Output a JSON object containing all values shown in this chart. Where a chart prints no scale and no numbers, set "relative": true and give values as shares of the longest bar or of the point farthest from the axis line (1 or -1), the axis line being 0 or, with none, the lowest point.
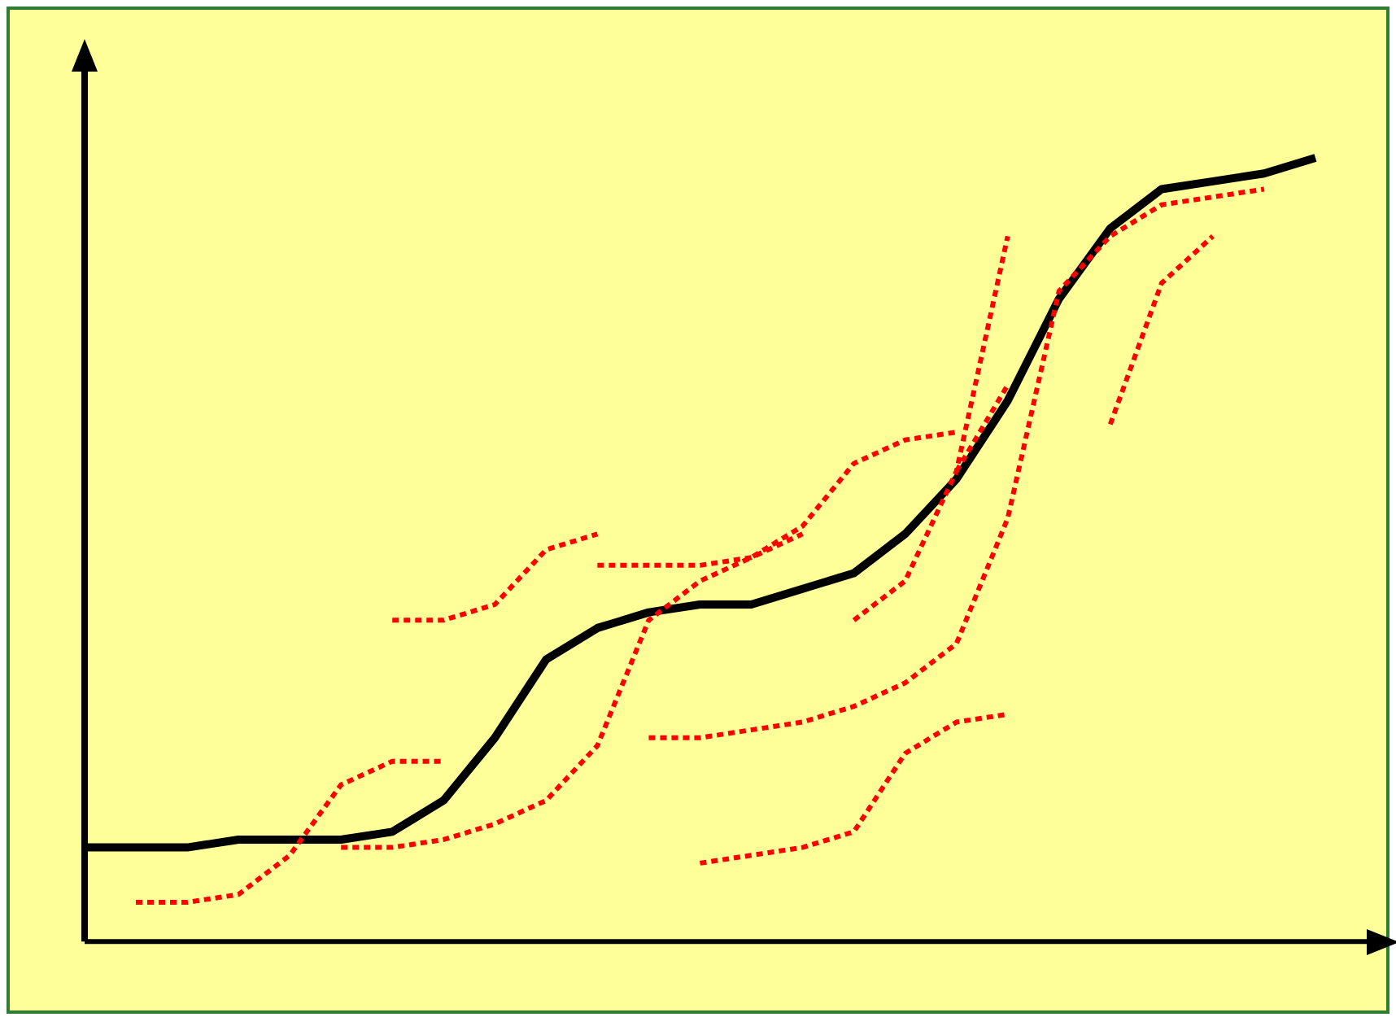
{
  "chart_data": {
    "type": "line",
    "relative": true,
    "grid": false,
    "legend": false,
    "marker": "none",
    "categories": [
      null,
      null,
      null,
      null,
      null,
      null,
      null,
      null,
      null,
      null,
      null,
      null,
      null,
      null,
      null,
      null,
      null,
      null,
      null,
      null,
      null,
      null,
      null,
      null,
      null,
      null
    ],
    "series": [
      {
        "color": "#000000",
        "line_style": "solid",
        "values": [
          0.12,
          0.12,
          0.12,
          0.13,
          0.13,
          0.13,
          0.14,
          0.18,
          0.26,
          0.36,
          0.4,
          0.42,
          0.43,
          0.43,
          0.45,
          0.47,
          0.52,
          0.59,
          0.69,
          0.82,
          0.91,
          0.96,
          0.97,
          0.98,
          1,
          null
        ]
      },
      {
        "color": "#ff0000",
        "line_style": "dotted",
        "values": [
          null,
          0.05,
          0.05,
          0.06,
          0.11,
          0.2,
          0.23,
          0.23,
          null,
          null,
          null,
          null,
          null,
          null,
          null,
          null,
          null,
          null,
          null,
          null,
          null,
          null,
          null,
          null,
          null,
          null
        ]
      },
      {
        "color": "#ff0000",
        "line_style": "dotted",
        "values": [
          null,
          null,
          null,
          null,
          null,
          0.12,
          0.12,
          0.13,
          0.15,
          0.18,
          0.25,
          0.41,
          0.46,
          0.49,
          0.53,
          0.61,
          0.64,
          0.65,
          null,
          null,
          null,
          null,
          null,
          null,
          null,
          null
        ]
      },
      {
        "color": "#ff0000",
        "line_style": "dotted",
        "values": [
          null,
          null,
          null,
          null,
          null,
          null,
          0.41,
          0.41,
          0.43,
          0.5,
          0.52,
          null,
          null,
          null,
          null,
          null,
          null,
          null,
          null,
          null,
          null,
          null,
          null,
          null,
          null,
          null
        ]
      },
      {
        "color": "#ff0000",
        "line_style": "dotted",
        "values": [
          null,
          null,
          null,
          null,
          null,
          null,
          null,
          null,
          null,
          null,
          0.48,
          0.48,
          0.48,
          0.49,
          0.52,
          null,
          null,
          null,
          null,
          null,
          null,
          null,
          null,
          null,
          null,
          null
        ]
      },
      {
        "color": "#ff0000",
        "line_style": "dotted",
        "values": [
          null,
          null,
          null,
          null,
          null,
          null,
          null,
          null,
          null,
          null,
          null,
          0.26,
          0.26,
          0.27,
          0.28,
          0.3,
          0.33,
          0.38,
          0.54,
          0.83,
          0.9,
          0.94,
          0.95,
          0.96,
          null,
          null
        ]
      },
      {
        "color": "#ff0000",
        "line_style": "dotted",
        "values": [
          null,
          null,
          null,
          null,
          null,
          null,
          null,
          null,
          null,
          null,
          null,
          null,
          null,
          null,
          null,
          0.41,
          0.46,
          0.6,
          0.9,
          null,
          null,
          null,
          null,
          null,
          null,
          null
        ]
      },
      {
        "color": "#ff0000",
        "line_style": "dotted",
        "values": [
          null,
          null,
          null,
          null,
          null,
          null,
          null,
          null,
          null,
          null,
          null,
          null,
          0.1,
          0.11,
          0.12,
          0.14,
          0.24,
          0.28,
          0.29,
          null,
          null,
          null,
          null,
          null,
          null,
          null
        ]
      },
      {
        "color": "#ff0000",
        "line_style": "dotted",
        "values": [
          null,
          null,
          null,
          null,
          null,
          null,
          null,
          null,
          null,
          null,
          null,
          null,
          null,
          null,
          null,
          null,
          null,
          null,
          null,
          null,
          0.66,
          0.84,
          0.9,
          null,
          null,
          null
        ]
      },
      {
        "color": "#ff0000",
        "line_style": "dotted",
        "values": [
          null,
          null,
          null,
          null,
          null,
          null,
          null,
          null,
          null,
          null,
          null,
          null,
          null,
          null,
          null,
          null,
          null,
          0.6,
          0.71,
          null,
          null,
          null,
          null,
          null,
          null,
          null
        ]
      }
    ]
  }
}
